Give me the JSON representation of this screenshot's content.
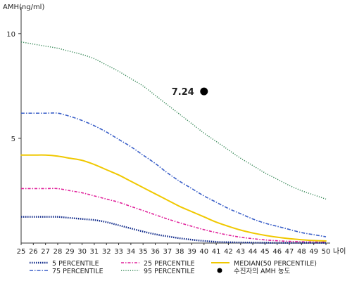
{
  "chart_data": {
    "type": "line",
    "ylabel": "AMH(ng/ml)",
    "xlabel": "나이",
    "xlim": [
      25,
      50
    ],
    "ylim": [
      0,
      11
    ],
    "x_ticks": [
      25,
      26,
      27,
      28,
      29,
      30,
      31,
      32,
      33,
      34,
      35,
      36,
      37,
      38,
      39,
      40,
      41,
      42,
      43,
      44,
      45,
      46,
      47,
      48,
      49,
      50
    ],
    "y_ticks": [
      5,
      10
    ],
    "series": [
      {
        "name": "95 PERCENTILE",
        "color": "#3a8a5a",
        "dash": "dotted-dense",
        "points": [
          [
            25,
            9.6
          ],
          [
            26,
            9.5
          ],
          [
            27,
            9.4
          ],
          [
            28,
            9.3
          ],
          [
            29,
            9.15
          ],
          [
            30,
            9.0
          ],
          [
            31,
            8.8
          ],
          [
            32,
            8.5
          ],
          [
            33,
            8.2
          ],
          [
            34,
            7.85
          ],
          [
            35,
            7.5
          ],
          [
            36,
            7.05
          ],
          [
            37,
            6.6
          ],
          [
            38,
            6.15
          ],
          [
            39,
            5.7
          ],
          [
            40,
            5.25
          ],
          [
            41,
            4.85
          ],
          [
            42,
            4.45
          ],
          [
            43,
            4.05
          ],
          [
            44,
            3.7
          ],
          [
            45,
            3.35
          ],
          [
            46,
            3.05
          ],
          [
            47,
            2.75
          ],
          [
            48,
            2.5
          ],
          [
            49,
            2.3
          ],
          [
            50,
            2.1
          ]
        ]
      },
      {
        "name": "75 PERCENTILE",
        "color": "#3a5fc8",
        "dash": "dash-dot",
        "points": [
          [
            25,
            6.2
          ],
          [
            26,
            6.2
          ],
          [
            27,
            6.2
          ],
          [
            28,
            6.2
          ],
          [
            29,
            6.05
          ],
          [
            30,
            5.85
          ],
          [
            31,
            5.6
          ],
          [
            32,
            5.3
          ],
          [
            33,
            4.95
          ],
          [
            34,
            4.6
          ],
          [
            35,
            4.2
          ],
          [
            36,
            3.8
          ],
          [
            37,
            3.35
          ],
          [
            38,
            2.95
          ],
          [
            39,
            2.6
          ],
          [
            40,
            2.25
          ],
          [
            41,
            1.95
          ],
          [
            42,
            1.65
          ],
          [
            43,
            1.4
          ],
          [
            44,
            1.15
          ],
          [
            45,
            0.95
          ],
          [
            46,
            0.8
          ],
          [
            47,
            0.65
          ],
          [
            48,
            0.5
          ],
          [
            49,
            0.4
          ],
          [
            50,
            0.3
          ]
        ]
      },
      {
        "name": "MEDIAN(50 PERCENTILE)",
        "color": "#f0c800",
        "dash": "solid",
        "points": [
          [
            25,
            4.2
          ],
          [
            26,
            4.2
          ],
          [
            27,
            4.2
          ],
          [
            28,
            4.15
          ],
          [
            29,
            4.05
          ],
          [
            30,
            3.95
          ],
          [
            31,
            3.75
          ],
          [
            32,
            3.5
          ],
          [
            33,
            3.25
          ],
          [
            34,
            2.95
          ],
          [
            35,
            2.65
          ],
          [
            36,
            2.35
          ],
          [
            37,
            2.05
          ],
          [
            38,
            1.75
          ],
          [
            39,
            1.5
          ],
          [
            40,
            1.25
          ],
          [
            41,
            1.0
          ],
          [
            42,
            0.8
          ],
          [
            43,
            0.62
          ],
          [
            44,
            0.48
          ],
          [
            45,
            0.37
          ],
          [
            46,
            0.28
          ],
          [
            47,
            0.21
          ],
          [
            48,
            0.16
          ],
          [
            49,
            0.12
          ],
          [
            50,
            0.1
          ]
        ]
      },
      {
        "name": "25 PERCENTILE",
        "color": "#e0209a",
        "dash": "dash-dot-tight",
        "points": [
          [
            25,
            2.6
          ],
          [
            26,
            2.6
          ],
          [
            27,
            2.6
          ],
          [
            28,
            2.6
          ],
          [
            29,
            2.5
          ],
          [
            30,
            2.4
          ],
          [
            31,
            2.25
          ],
          [
            32,
            2.1
          ],
          [
            33,
            1.95
          ],
          [
            34,
            1.75
          ],
          [
            35,
            1.55
          ],
          [
            36,
            1.35
          ],
          [
            37,
            1.15
          ],
          [
            38,
            0.97
          ],
          [
            39,
            0.8
          ],
          [
            40,
            0.64
          ],
          [
            41,
            0.5
          ],
          [
            42,
            0.38
          ],
          [
            43,
            0.28
          ],
          [
            44,
            0.21
          ],
          [
            45,
            0.15
          ],
          [
            46,
            0.11
          ],
          [
            47,
            0.08
          ],
          [
            48,
            0.06
          ],
          [
            49,
            0.05
          ],
          [
            50,
            0.04
          ]
        ]
      },
      {
        "name": "5 PERCENTILE",
        "color": "#102a8a",
        "dash": "dotted-heavy",
        "points": [
          [
            25,
            1.25
          ],
          [
            26,
            1.25
          ],
          [
            27,
            1.25
          ],
          [
            28,
            1.25
          ],
          [
            29,
            1.2
          ],
          [
            30,
            1.15
          ],
          [
            31,
            1.1
          ],
          [
            32,
            1.0
          ],
          [
            33,
            0.85
          ],
          [
            34,
            0.7
          ],
          [
            35,
            0.55
          ],
          [
            36,
            0.42
          ],
          [
            37,
            0.32
          ],
          [
            38,
            0.23
          ],
          [
            39,
            0.16
          ],
          [
            40,
            0.1
          ],
          [
            41,
            0.06
          ],
          [
            42,
            0.04
          ],
          [
            43,
            0.03
          ],
          [
            44,
            0.02
          ],
          [
            45,
            0.015
          ],
          [
            46,
            0.01
          ],
          [
            47,
            0.01
          ],
          [
            48,
            0.01
          ],
          [
            49,
            0.01
          ],
          [
            50,
            0.01
          ]
        ]
      }
    ],
    "marker": {
      "name": "수진자의 AMH 농도",
      "x": 40,
      "y": 7.24,
      "label": "7.24",
      "color": "#000000"
    },
    "legend": {
      "position": "bottom",
      "entries": [
        {
          "label": "5 PERCENTILE",
          "series": "5 PERCENTILE"
        },
        {
          "label": "25 PERCENTILE",
          "series": "25 PERCENTILE"
        },
        {
          "label": "MEDIAN(50 PERCENTILE)",
          "series": "MEDIAN(50 PERCENTILE)"
        },
        {
          "label": "75 PERCENTILE",
          "series": "75 PERCENTILE"
        },
        {
          "label": "95 PERCENTILE",
          "series": "95 PERCENTILE"
        },
        {
          "label": "수진자의 AMH 농도",
          "series": "marker"
        }
      ]
    },
    "grid": false
  }
}
